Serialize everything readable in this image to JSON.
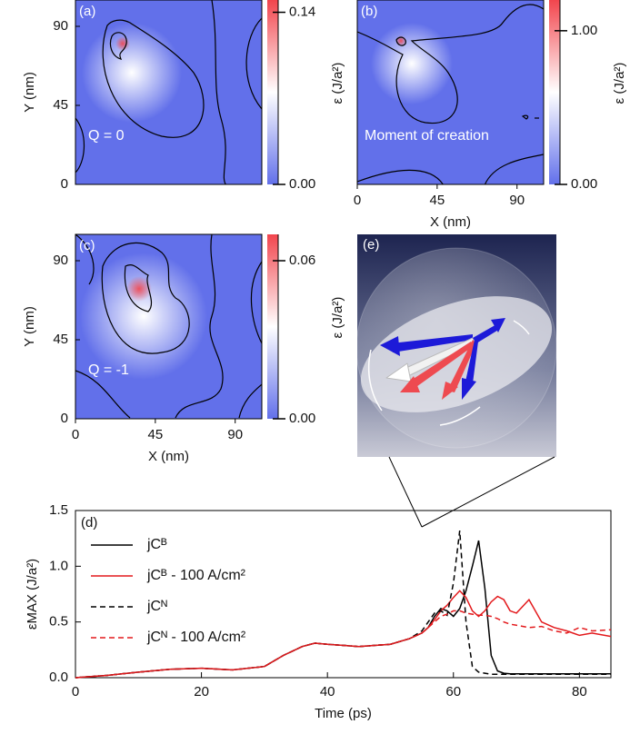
{
  "chart_data": [
    {
      "type": "heatmap",
      "label": "(a)",
      "annotation": "Q = 0",
      "xlim": [
        0,
        105
      ],
      "ylim": [
        0,
        105
      ],
      "yticks": [
        0,
        45,
        90
      ],
      "ylabel": "Y (nm)",
      "clim": [
        0,
        0.15
      ],
      "cticks": [
        {
          "value": 0,
          "label": "0.00"
        },
        0.14
      ],
      "clabel": "ε (J/a²)",
      "cmap": [
        "#6270ea",
        "#ffffff",
        "#f2454d"
      ]
    },
    {
      "type": "heatmap",
      "label": "(b)",
      "annotation": "Moment of creation",
      "xlim": [
        0,
        105
      ],
      "ylim": [
        0,
        105
      ],
      "xticks": [
        0,
        45,
        90
      ],
      "xlabel": "X (nm)",
      "clim": [
        0,
        1.2
      ],
      "cticks": [
        {
          "value": 0,
          "label": "0.00"
        },
        {
          "value": 1,
          "label": "1.00"
        }
      ],
      "clabel": "ε (J/a²)",
      "cmap": [
        "#6270ea",
        "#ffffff",
        "#f2454d"
      ]
    },
    {
      "type": "heatmap",
      "label": "(c)",
      "annotation": "Q = -1",
      "xlim": [
        0,
        105
      ],
      "ylim": [
        0,
        105
      ],
      "xticks": [
        0,
        45,
        90
      ],
      "yticks": [
        0,
        45,
        90
      ],
      "xlabel": "X (nm)",
      "ylabel": "Y (nm)",
      "clim": [
        0,
        0.07
      ],
      "cticks": [
        {
          "value": 0,
          "label": "0.00"
        },
        0.06
      ],
      "clabel": "ε (J/a²)",
      "cmap": [
        "#6270ea",
        "#ffffff",
        "#f2454d"
      ]
    },
    {
      "type": "line",
      "label": "(d)",
      "xlabel": "Time (ps)",
      "ylabel": "εMAX (J/a²)",
      "x": [
        0,
        5,
        10,
        15,
        20,
        25,
        30,
        33,
        36,
        38,
        40,
        45,
        50,
        53,
        55,
        56,
        57,
        58,
        59,
        60,
        61,
        62,
        63,
        64,
        65,
        66,
        67,
        68,
        69,
        70,
        72,
        74,
        76,
        78,
        80,
        82,
        85
      ],
      "xlim": [
        0,
        85
      ],
      "xticks": [
        0,
        20,
        40,
        60,
        80
      ],
      "ylim": [
        0,
        1.5
      ],
      "yticks": [
        {
          "value": 0,
          "label": "0.0"
        },
        0.5,
        {
          "value": 1,
          "label": "1.0"
        },
        1.5
      ],
      "series": [
        {
          "name": "jCᴮ",
          "color": "#000000",
          "style": "solid",
          "values": [
            0,
            0.02,
            0.05,
            0.075,
            0.085,
            0.07,
            0.1,
            0.2,
            0.28,
            0.31,
            0.3,
            0.28,
            0.3,
            0.35,
            0.4,
            0.45,
            0.55,
            0.62,
            0.6,
            0.55,
            0.62,
            0.78,
            1.0,
            1.23,
            0.8,
            0.2,
            0.06,
            0.04,
            0.035,
            0.035,
            0.035,
            0.035,
            0.035,
            0.035,
            0.035,
            0.035,
            0.035
          ]
        },
        {
          "name": "jCᴮ - 100 A/cm²",
          "color": "#e3191c",
          "style": "solid",
          "values": [
            0,
            0.02,
            0.05,
            0.075,
            0.085,
            0.07,
            0.1,
            0.2,
            0.28,
            0.31,
            0.3,
            0.28,
            0.3,
            0.35,
            0.4,
            0.45,
            0.52,
            0.6,
            0.65,
            0.72,
            0.78,
            0.72,
            0.6,
            0.55,
            0.6,
            0.68,
            0.73,
            0.7,
            0.6,
            0.58,
            0.7,
            0.5,
            0.45,
            0.42,
            0.38,
            0.4,
            0.37
          ]
        },
        {
          "name": "jCᴺ",
          "color": "#000000",
          "style": "dashed",
          "values": [
            0,
            0.02,
            0.05,
            0.075,
            0.085,
            0.07,
            0.1,
            0.2,
            0.28,
            0.31,
            0.3,
            0.28,
            0.3,
            0.35,
            0.42,
            0.5,
            0.58,
            0.6,
            0.56,
            0.85,
            1.32,
            0.5,
            0.1,
            0.05,
            0.04,
            0.03,
            0.03,
            0.03,
            0.03,
            0.03,
            0.03,
            0.03,
            0.03,
            0.03,
            0.03,
            0.03,
            0.03
          ]
        },
        {
          "name": "jCᴺ - 100 A/cm²",
          "color": "#e3191c",
          "style": "dashed",
          "values": [
            0,
            0.02,
            0.05,
            0.075,
            0.085,
            0.07,
            0.1,
            0.2,
            0.28,
            0.31,
            0.3,
            0.28,
            0.3,
            0.35,
            0.4,
            0.45,
            0.5,
            0.55,
            0.57,
            0.6,
            0.6,
            0.58,
            0.57,
            0.56,
            0.56,
            0.55,
            0.53,
            0.5,
            0.48,
            0.47,
            0.45,
            0.46,
            0.42,
            0.4,
            0.45,
            0.42,
            0.43
          ]
        }
      ]
    }
  ],
  "illustration": {
    "label": "(e)"
  }
}
